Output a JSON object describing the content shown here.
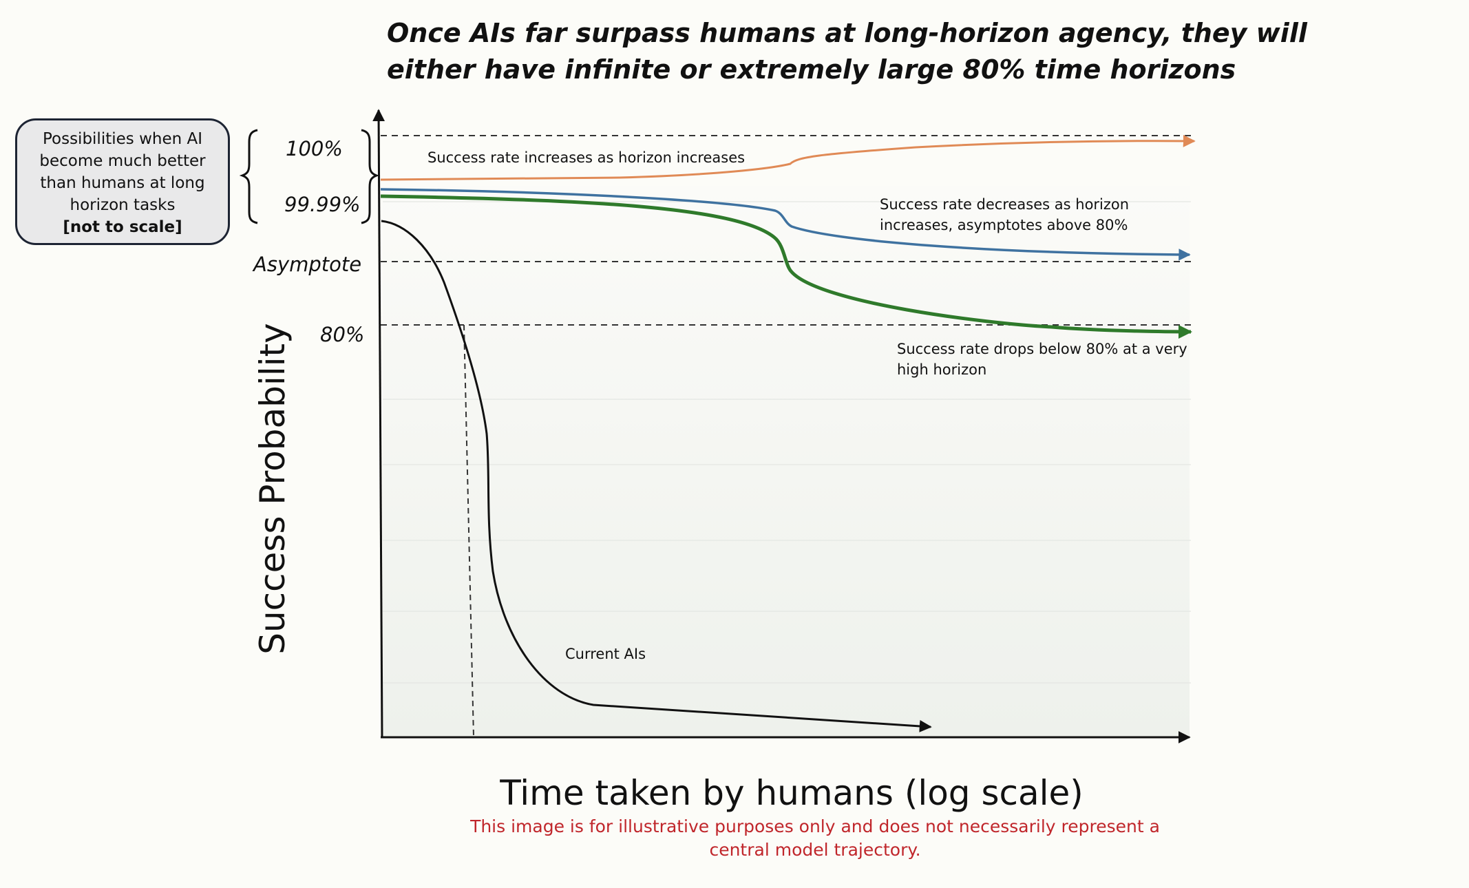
{
  "title": {
    "line1": "Once AIs far surpass humans at long-horizon agency, they will",
    "line2": "either have infinite or extremely large 80% time horizons"
  },
  "callout": {
    "lines": [
      "Possibilities when AI",
      "become much better",
      "than humans at long",
      "horizon tasks"
    ],
    "note": "[not to scale]"
  },
  "disclaimer": {
    "line1": "This image is for illustrative purposes only and does not necessarily represent a",
    "line2": "central model trajectory."
  },
  "chart_data": {
    "type": "line",
    "xlabel": "Time taken by humans (log scale)",
    "ylabel": "Success Probability",
    "xscale": "log",
    "y_tick_labels": [
      "100%",
      "99.99%",
      "Asymptote",
      "80%"
    ],
    "brace_groups": [
      [
        "100%",
        "99.99%"
      ]
    ],
    "series": [
      {
        "color": "#e08a56",
        "shape": "rises gradually toward 100%",
        "annotation": "Success rate increases as horizon increases"
      },
      {
        "color": "#3f72a0",
        "shape": "starts near 99.99% and declines toward an asymptote above 80%",
        "annotation_lines": [
          "Success rate decreases as horizon",
          "increases, asymptotes above 80%"
        ]
      },
      {
        "color": "#2f7a2b",
        "shape": "starts near 99.99% and eventually drops below 80%",
        "annotation_lines": [
          "Success rate drops below 80% at a very",
          "high horizon"
        ]
      },
      {
        "color": "#111111",
        "shape": "falls steeply from near 100% to near 0%",
        "annotation": "Current AIs"
      }
    ],
    "reference_lines": [
      "100%",
      "Asymptote",
      "80%"
    ],
    "grid": true
  }
}
